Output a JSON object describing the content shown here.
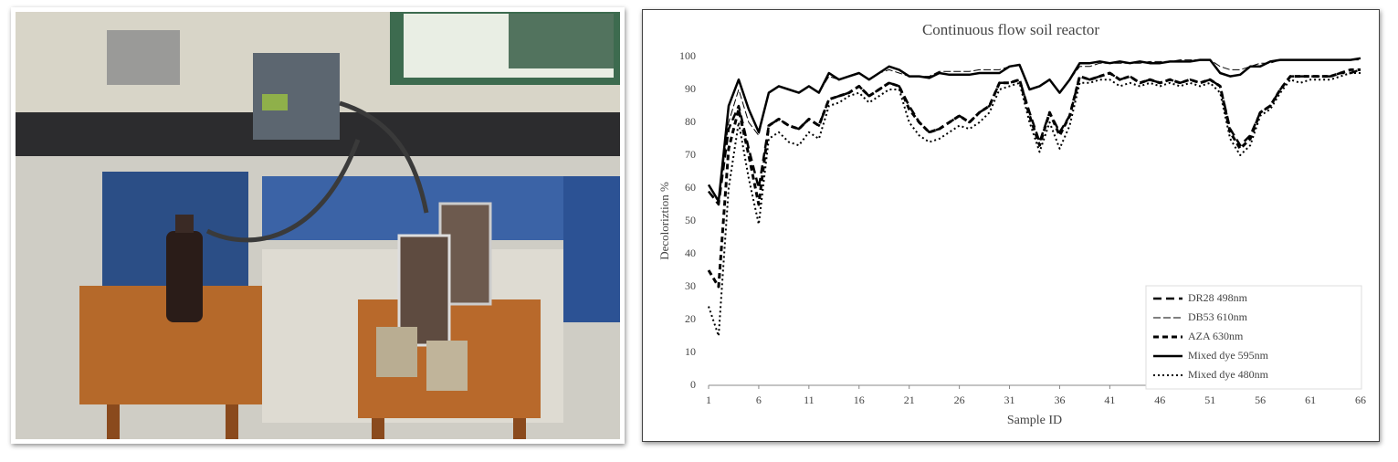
{
  "chart_data": {
    "type": "line",
    "title": "Continuous flow soil reactor",
    "x_label": "Sample ID",
    "y_label": "Decoloriztion %",
    "x": [
      1,
      2,
      3,
      4,
      5,
      6,
      7,
      8,
      9,
      10,
      11,
      12,
      13,
      14,
      15,
      16,
      17,
      18,
      19,
      20,
      21,
      22,
      23,
      24,
      25,
      26,
      27,
      28,
      29,
      30,
      31,
      32,
      33,
      34,
      35,
      36,
      37,
      38,
      39,
      40,
      41,
      42,
      43,
      44,
      45,
      46,
      47,
      48,
      49,
      50,
      51,
      52,
      53,
      54,
      55,
      56,
      57,
      58,
      59,
      60,
      61,
      62,
      63,
      64,
      65,
      66
    ],
    "xlim": [
      1,
      66
    ],
    "xticks": [
      1,
      6,
      11,
      16,
      21,
      26,
      31,
      36,
      41,
      46,
      51,
      56,
      61,
      66
    ],
    "ylim": [
      0,
      100
    ],
    "yticks": [
      0,
      10,
      20,
      30,
      40,
      50,
      60,
      70,
      80,
      90,
      100
    ],
    "legend": "bottom-right",
    "series": [
      {
        "name": "DR28 498nm",
        "color": "#000000",
        "dash": "9,5",
        "width": 2.5,
        "values": [
          59,
          55,
          78,
          85,
          72,
          60,
          79,
          81,
          79,
          78,
          81,
          79,
          87,
          88,
          89,
          91,
          88,
          90,
          92,
          91,
          85,
          80,
          77,
          78,
          80,
          82,
          80,
          83,
          85,
          92,
          92,
          93,
          83,
          74,
          83,
          77,
          82,
          94,
          93,
          94,
          95,
          93,
          94,
          92,
          93,
          92,
          93,
          92,
          93,
          92,
          93,
          91,
          78,
          73,
          76,
          83,
          85,
          90,
          94,
          94,
          94,
          94,
          94,
          95,
          95,
          96
        ]
      },
      {
        "name": "DB53 610nm",
        "color": "#000000",
        "dash": "8,3",
        "width": 1,
        "values": [
          59,
          56,
          80,
          90,
          80,
          76,
          89,
          91,
          90,
          89,
          91,
          89,
          94,
          93,
          94,
          95,
          93,
          95,
          96,
          95,
          94,
          94,
          94,
          95.5,
          95.5,
          95.5,
          95.5,
          96,
          96,
          96,
          97,
          97.5,
          90,
          91,
          93,
          89,
          93,
          97,
          97,
          98,
          98,
          98,
          98,
          98,
          98.5,
          98.5,
          98.5,
          99,
          99,
          99,
          99,
          97,
          96,
          96,
          97,
          98,
          98,
          99,
          99,
          99,
          99,
          99,
          99,
          99,
          99,
          99
        ]
      },
      {
        "name": "AZA 630nm",
        "color": "#000000",
        "dash": "6,4",
        "width": 3,
        "values": [
          35,
          30,
          72,
          84,
          70,
          55,
          79,
          81,
          79,
          78,
          81,
          79,
          87,
          88,
          89,
          91,
          88,
          90,
          92,
          91,
          84,
          80,
          77,
          78,
          80,
          82,
          80,
          83,
          85,
          92,
          92,
          93,
          82,
          73,
          83,
          76,
          82,
          94,
          93,
          94,
          95,
          93,
          94,
          92,
          93,
          92,
          93,
          92,
          93,
          92,
          93,
          91,
          77,
          72,
          75,
          83,
          85,
          90,
          94,
          94,
          94,
          94,
          94,
          95,
          96,
          96
        ]
      },
      {
        "name": "Mixed dye 595nm",
        "color": "#000000",
        "dash": "none",
        "width": 2.5,
        "values": [
          61,
          56,
          85,
          93,
          84,
          77,
          89,
          91,
          90,
          89,
          91,
          89,
          95,
          93,
          94,
          95,
          93,
          95,
          97,
          96,
          94,
          94,
          93.5,
          95,
          94.5,
          94.5,
          94.5,
          95,
          95,
          95,
          97,
          97.5,
          90,
          91,
          93,
          89,
          93,
          98,
          98,
          98.5,
          98,
          98.5,
          98,
          98.5,
          98,
          98,
          98.5,
          98.5,
          98.5,
          99,
          99,
          95,
          94,
          94.5,
          97,
          97,
          98.5,
          99,
          99,
          99,
          99,
          99,
          99,
          99,
          99,
          99.5
        ]
      },
      {
        "name": "Mixed dye 480nm",
        "color": "#000000",
        "dash": "2,3",
        "width": 2,
        "values": [
          24,
          15,
          60,
          80,
          63,
          49,
          75,
          77,
          74,
          73,
          77,
          75,
          85,
          86,
          88,
          89,
          86,
          88,
          90,
          90,
          80,
          76,
          74,
          75,
          77,
          79,
          78,
          80,
          83,
          90,
          91,
          92,
          80,
          71,
          80,
          72,
          79,
          92,
          92,
          93,
          93,
          91,
          92,
          91,
          92,
          91,
          92,
          91,
          92,
          91,
          92,
          89,
          75,
          70,
          73,
          82,
          84,
          89,
          93,
          92,
          93,
          93,
          93,
          94,
          95,
          95
        ]
      }
    ]
  }
}
